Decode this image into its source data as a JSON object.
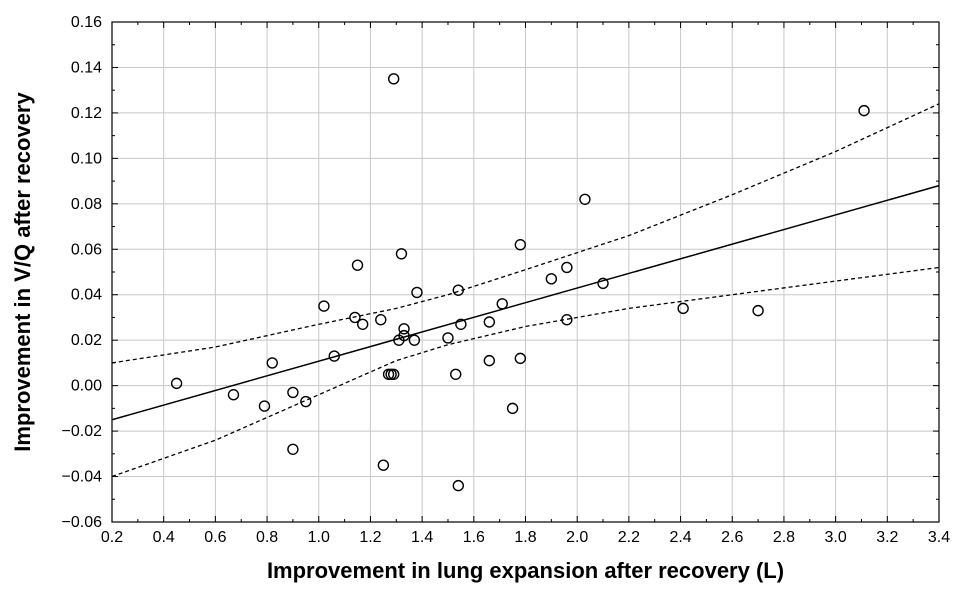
{
  "chart_data": {
    "type": "scatter",
    "title": "",
    "xlabel": "Improvement in lung expansion after recovery (L)",
    "ylabel": "Improvement in V/Q after recovery",
    "xlim": [
      0.2,
      3.4
    ],
    "ylim": [
      -0.06,
      0.16
    ],
    "x_ticks": [
      0.2,
      0.4,
      0.6,
      0.8,
      1.0,
      1.2,
      1.4,
      1.6,
      1.8,
      2.0,
      2.2,
      2.4,
      2.6,
      2.8,
      3.0,
      3.2,
      3.4
    ],
    "x_tick_labels": [
      "0.2",
      "0.4",
      "0.6",
      "0.8",
      "1.0",
      "1.2",
      "1.4",
      "1.6",
      "1.8",
      "2.0",
      "2.2",
      "2.4",
      "2.6",
      "2.8",
      "3.0",
      "3.2",
      "3.4"
    ],
    "y_ticks": [
      -0.06,
      -0.04,
      -0.02,
      0.0,
      0.02,
      0.04,
      0.06,
      0.08,
      0.1,
      0.12,
      0.14,
      0.16
    ],
    "y_tick_labels": [
      "−0.06",
      "−0.04",
      "−0.02",
      "0.00",
      "0.02",
      "0.04",
      "0.06",
      "0.08",
      "0.10",
      "0.12",
      "0.14",
      "0.16"
    ],
    "grid": true,
    "points": [
      {
        "x": 0.45,
        "y": 0.001
      },
      {
        "x": 0.67,
        "y": -0.004
      },
      {
        "x": 0.79,
        "y": -0.009
      },
      {
        "x": 0.82,
        "y": 0.01
      },
      {
        "x": 0.9,
        "y": -0.003
      },
      {
        "x": 0.9,
        "y": -0.028
      },
      {
        "x": 0.95,
        "y": -0.007
      },
      {
        "x": 1.02,
        "y": 0.035
      },
      {
        "x": 1.06,
        "y": 0.013
      },
      {
        "x": 1.14,
        "y": 0.03
      },
      {
        "x": 1.15,
        "y": 0.053
      },
      {
        "x": 1.17,
        "y": 0.027
      },
      {
        "x": 1.24,
        "y": 0.029
      },
      {
        "x": 1.25,
        "y": -0.035
      },
      {
        "x": 1.27,
        "y": 0.005
      },
      {
        "x": 1.28,
        "y": 0.005
      },
      {
        "x": 1.29,
        "y": 0.005
      },
      {
        "x": 1.29,
        "y": 0.135
      },
      {
        "x": 1.31,
        "y": 0.02
      },
      {
        "x": 1.32,
        "y": 0.058
      },
      {
        "x": 1.33,
        "y": 0.025
      },
      {
        "x": 1.33,
        "y": 0.022
      },
      {
        "x": 1.37,
        "y": 0.02
      },
      {
        "x": 1.38,
        "y": 0.041
      },
      {
        "x": 1.5,
        "y": 0.021
      },
      {
        "x": 1.53,
        "y": 0.005
      },
      {
        "x": 1.54,
        "y": 0.042
      },
      {
        "x": 1.54,
        "y": -0.044
      },
      {
        "x": 1.55,
        "y": 0.027
      },
      {
        "x": 1.66,
        "y": 0.028
      },
      {
        "x": 1.66,
        "y": 0.011
      },
      {
        "x": 1.71,
        "y": 0.036
      },
      {
        "x": 1.75,
        "y": -0.01
      },
      {
        "x": 1.78,
        "y": 0.062
      },
      {
        "x": 1.78,
        "y": 0.012
      },
      {
        "x": 1.9,
        "y": 0.047
      },
      {
        "x": 1.96,
        "y": 0.052
      },
      {
        "x": 1.96,
        "y": 0.029
      },
      {
        "x": 2.03,
        "y": 0.082
      },
      {
        "x": 2.1,
        "y": 0.045
      },
      {
        "x": 2.41,
        "y": 0.034
      },
      {
        "x": 2.7,
        "y": 0.033
      },
      {
        "x": 3.11,
        "y": 0.121
      }
    ],
    "regression_line": {
      "x": [
        0.2,
        3.4
      ],
      "y": [
        -0.015,
        0.088
      ]
    },
    "confidence_upper": {
      "x": [
        0.2,
        0.6,
        1.0,
        1.3,
        1.5,
        1.8,
        2.2,
        2.6,
        3.0,
        3.4
      ],
      "y": [
        0.01,
        0.017,
        0.027,
        0.034,
        0.04,
        0.051,
        0.066,
        0.084,
        0.103,
        0.124
      ]
    },
    "confidence_lower": {
      "x": [
        0.2,
        0.6,
        1.0,
        1.3,
        1.5,
        1.8,
        2.2,
        2.6,
        3.0,
        3.4
      ],
      "y": [
        -0.04,
        -0.024,
        -0.004,
        0.011,
        0.018,
        0.026,
        0.034,
        0.04,
        0.046,
        0.052
      ]
    },
    "colors": {
      "marker": "#000000",
      "line": "#000000",
      "grid": "#c8c8c8"
    }
  }
}
